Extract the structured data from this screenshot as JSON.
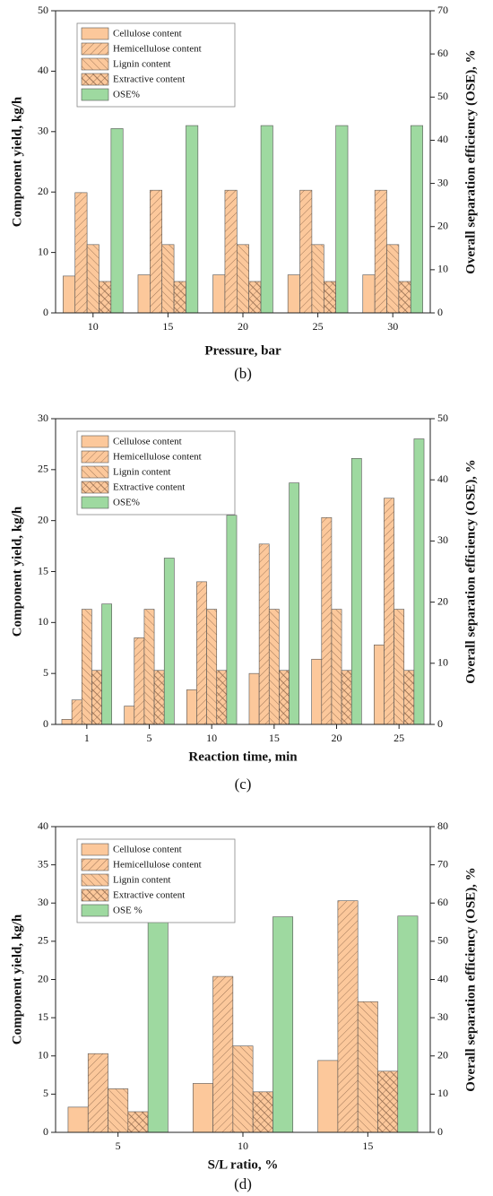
{
  "chart_data": [
    {
      "type": "bar",
      "caption": "(b)",
      "x_label": "Pressure, bar",
      "y_label": "Component yield, kg/h",
      "y2_label": "Overall separation efficiency (OSE), %",
      "categories": [
        "10",
        "15",
        "20",
        "25",
        "30"
      ],
      "series": [
        {
          "name": "Cellulose content",
          "color": "#fcc89b",
          "hatch": "none",
          "values": [
            6.1,
            6.3,
            6.3,
            6.3,
            6.3
          ]
        },
        {
          "name": "Hemicellulose content",
          "color": "#fcc89b",
          "hatch": "/",
          "values": [
            19.9,
            20.3,
            20.3,
            20.3,
            20.3
          ]
        },
        {
          "name": "Lignin content",
          "color": "#fcc89b",
          "hatch": "\\",
          "values": [
            11.3,
            11.3,
            11.3,
            11.3,
            11.3
          ]
        },
        {
          "name": "Extractive content",
          "color": "#fcc89b",
          "hatch": "x",
          "values": [
            5.2,
            5.2,
            5.2,
            5.2,
            5.2
          ]
        },
        {
          "name": "OSE%",
          "color": "#9ed9a0",
          "hatch": "none",
          "axis": "y2",
          "values": [
            42.7,
            43.4,
            43.4,
            43.4,
            43.4
          ]
        }
      ],
      "ylim": [
        0,
        50
      ],
      "yticks": [
        0,
        10,
        20,
        30,
        40,
        50
      ],
      "y2lim": [
        0,
        70
      ],
      "y2ticks": [
        0,
        10,
        20,
        30,
        40,
        50,
        60,
        70
      ]
    },
    {
      "type": "bar",
      "caption": "(c)",
      "x_label": "Reaction time, min",
      "y_label": "Component yield, kg/h",
      "y2_label": "Overall separation efficiency (OSE), %",
      "categories": [
        "1",
        "5",
        "10",
        "15",
        "20",
        "25"
      ],
      "series": [
        {
          "name": "Cellulose content",
          "color": "#fcc89b",
          "hatch": "none",
          "values": [
            0.5,
            1.8,
            3.4,
            5.0,
            6.4,
            7.8
          ]
        },
        {
          "name": "Hemicellulose content",
          "color": "#fcc89b",
          "hatch": "/",
          "values": [
            2.4,
            8.5,
            14.0,
            17.7,
            20.3,
            22.2
          ]
        },
        {
          "name": "Lignin content",
          "color": "#fcc89b",
          "hatch": "\\",
          "values": [
            11.3,
            11.3,
            11.3,
            11.3,
            11.3,
            11.3
          ]
        },
        {
          "name": "Extractive content",
          "color": "#fcc89b",
          "hatch": "x",
          "values": [
            5.3,
            5.3,
            5.3,
            5.3,
            5.3,
            5.3
          ]
        },
        {
          "name": "OSE%",
          "color": "#9ed9a0",
          "hatch": "none",
          "axis": "y2",
          "values": [
            19.7,
            27.2,
            34.2,
            39.5,
            43.5,
            46.7
          ]
        }
      ],
      "ylim": [
        0,
        30
      ],
      "yticks": [
        0,
        5,
        10,
        15,
        20,
        25,
        30
      ],
      "y2lim": [
        0,
        50
      ],
      "y2ticks": [
        0,
        10,
        20,
        30,
        40,
        50
      ]
    },
    {
      "type": "bar",
      "caption": "(d)",
      "x_label": "S/L ratio, %",
      "y_label": "Component yield, kg/h",
      "y2_label": "Overall separation efficiency (OSE), %",
      "categories": [
        "5",
        "10",
        "15"
      ],
      "series": [
        {
          "name": "Cellulose content",
          "color": "#fcc89b",
          "hatch": "none",
          "values": [
            3.3,
            6.4,
            9.4
          ]
        },
        {
          "name": "Hemicellulose content",
          "color": "#fcc89b",
          "hatch": "/",
          "values": [
            10.3,
            20.4,
            30.3
          ]
        },
        {
          "name": "Lignin content",
          "color": "#fcc89b",
          "hatch": "\\",
          "values": [
            5.7,
            11.3,
            17.1
          ]
        },
        {
          "name": "Extractive content",
          "color": "#fcc89b",
          "hatch": "x",
          "values": [
            2.7,
            5.3,
            8.0
          ]
        },
        {
          "name": "OSE %",
          "color": "#9ed9a0",
          "hatch": "none",
          "axis": "y2",
          "values": [
            56.0,
            56.4,
            56.6
          ]
        }
      ],
      "ylim": [
        0,
        40
      ],
      "yticks": [
        0,
        5,
        10,
        15,
        20,
        25,
        30,
        35,
        40
      ],
      "y2lim": [
        0,
        80
      ],
      "y2ticks": [
        0,
        10,
        20,
        30,
        40,
        50,
        60,
        70,
        80
      ]
    }
  ]
}
